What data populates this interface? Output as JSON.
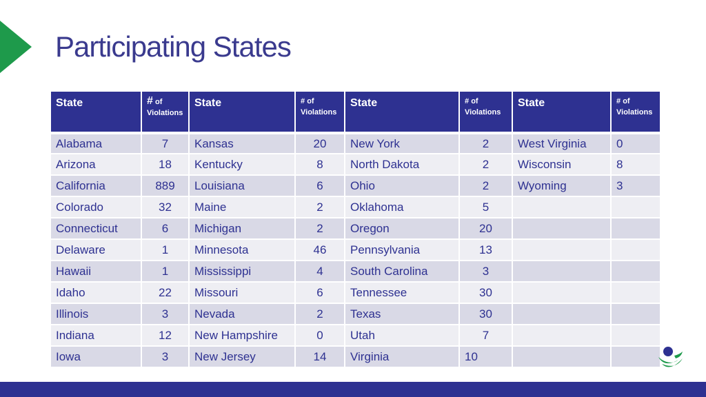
{
  "title": "Participating States",
  "headers": [
    {
      "state": "State",
      "violations_hash": "#",
      "violations_of": "of",
      "violations_label": "Violations"
    },
    {
      "state": "State",
      "violations_hash": "#",
      "violations_of": "of",
      "violations_label": "Violations"
    },
    {
      "state": "State",
      "violations_hash": "#",
      "violations_of": "of",
      "violations_label": "Violations"
    },
    {
      "state": "State",
      "violations_hash": "#",
      "violations_of": "of",
      "violations_label": "Violations"
    }
  ],
  "rows": [
    {
      "s1": "Alabama",
      "v1": "7",
      "s2": "Kansas",
      "v2": "20",
      "s3": "New York",
      "v3": "2",
      "s4": "West Virginia",
      "v4": "0"
    },
    {
      "s1": "Arizona",
      "v1": "18",
      "s2": "Kentucky",
      "v2": "8",
      "s3": "North Dakota",
      "v3": "2",
      "s4": "Wisconsin",
      "v4": "8"
    },
    {
      "s1": "California",
      "v1": "889",
      "s2": "Louisiana",
      "v2": "6",
      "s3": "Ohio",
      "v3": "2",
      "s4": "Wyoming",
      "v4": "3"
    },
    {
      "s1": "Colorado",
      "v1": "32",
      "s2": "Maine",
      "v2": "2",
      "s3": "Oklahoma",
      "v3": "5",
      "s4": "",
      "v4": ""
    },
    {
      "s1": "Connecticut",
      "v1": "6",
      "s2": "Michigan",
      "v2": "2",
      "s3": "Oregon",
      "v3": "20",
      "s4": "",
      "v4": ""
    },
    {
      "s1": "Delaware",
      "v1": "1",
      "s2": "Minnesota",
      "v2": "46",
      "s3": "Pennsylvania",
      "v3": "13",
      "s4": "",
      "v4": ""
    },
    {
      "s1": "Hawaii",
      "v1": "1",
      "s2": "Mississippi",
      "v2": "4",
      "s3": "South Carolina",
      "v3": "3",
      "s4": "",
      "v4": ""
    },
    {
      "s1": "Idaho",
      "v1": "22",
      "s2": "Missouri",
      "v2": "6",
      "s3": "Tennessee",
      "v3": "30",
      "s4": "",
      "v4": ""
    },
    {
      "s1": "Illinois",
      "v1": "3",
      "s2": "Nevada",
      "v2": "2",
      "s3": "Texas",
      "v3": "30",
      "s4": "",
      "v4": ""
    },
    {
      "s1": "Indiana",
      "v1": "12",
      "s2": "New Hampshire",
      "v2": "0",
      "s3": "Utah",
      "v3": "7",
      "s4": "",
      "v4": ""
    },
    {
      "s1": "Iowa",
      "v1": "3",
      "s2": "New Jersey",
      "v2": "14",
      "s3": "Virginia",
      "v3": "10",
      "s4": "",
      "v4": ""
    }
  ],
  "colors": {
    "accent_green": "#1e9a4b",
    "brand_navy": "#2e3191"
  },
  "icons": {
    "logo": "organization-logo-icon",
    "arrow": "accent-arrow-icon"
  }
}
